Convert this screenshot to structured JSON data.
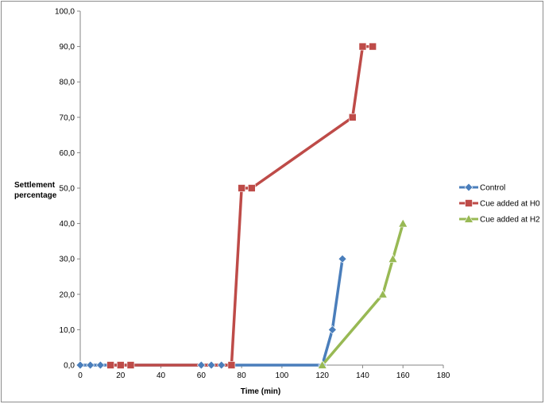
{
  "chart_data": {
    "type": "line",
    "xlabel": "Time (min)",
    "ylabel_lines": [
      "Settlement",
      "percentage"
    ],
    "xlim": [
      0,
      180
    ],
    "ylim": [
      0,
      100
    ],
    "x_ticks": [
      "0",
      "20",
      "40",
      "60",
      "80",
      "100",
      "120",
      "140",
      "160",
      "180"
    ],
    "y_ticks": [
      "0,0",
      "10,0",
      "20,0",
      "30,0",
      "40,0",
      "50,0",
      "60,0",
      "70,0",
      "80,0",
      "90,0",
      "100,0"
    ],
    "grid": false,
    "legend_position": "right",
    "series": [
      {
        "name": "Control",
        "color": "#4a7ebb",
        "marker": "diamond",
        "x": [
          0,
          5,
          10,
          60,
          65,
          70,
          120,
          125,
          130
        ],
        "y": [
          0,
          0,
          0,
          0,
          0,
          0,
          0,
          10,
          30
        ]
      },
      {
        "name": "Cue added at H0",
        "color": "#be4b48",
        "marker": "square",
        "x": [
          15,
          20,
          25,
          75,
          80,
          85,
          135,
          140,
          145
        ],
        "y": [
          0,
          0,
          0,
          0,
          50,
          50,
          70,
          90,
          90
        ]
      },
      {
        "name": "Cue added at H2",
        "color": "#98b954",
        "marker": "triangle",
        "x": [
          120,
          150,
          155,
          160
        ],
        "y": [
          0,
          20,
          30,
          40
        ]
      }
    ]
  }
}
